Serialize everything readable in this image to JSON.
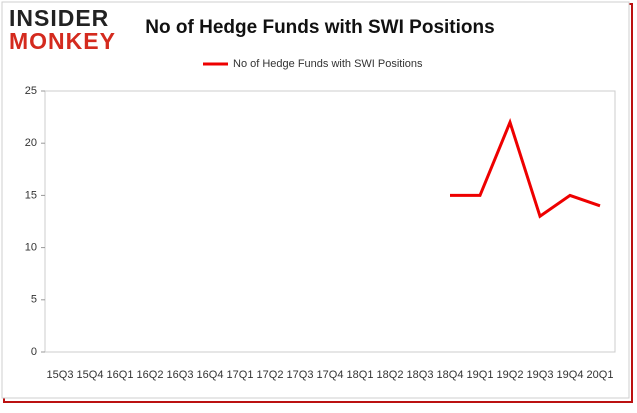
{
  "logo": {
    "top": "INSIDER",
    "bottom": "MONKEY"
  },
  "chart_data": {
    "type": "line",
    "title": "No of Hedge Funds with SWI Positions",
    "categories": [
      "15Q3",
      "15Q4",
      "16Q1",
      "16Q2",
      "16Q3",
      "16Q4",
      "17Q1",
      "17Q2",
      "17Q3",
      "17Q4",
      "18Q1",
      "18Q2",
      "18Q3",
      "18Q4",
      "19Q1",
      "19Q2",
      "19Q3",
      "19Q4",
      "20Q1"
    ],
    "series": [
      {
        "name": "No of Hedge Funds with SWI Positions",
        "color": "#ee0000",
        "values": [
          null,
          null,
          null,
          null,
          null,
          null,
          null,
          null,
          null,
          null,
          null,
          null,
          null,
          15,
          15,
          22,
          13,
          15,
          14
        ]
      }
    ],
    "ylim": [
      0,
      25
    ],
    "yticks": [
      0,
      5,
      10,
      15,
      20,
      25
    ],
    "legend": "top"
  }
}
